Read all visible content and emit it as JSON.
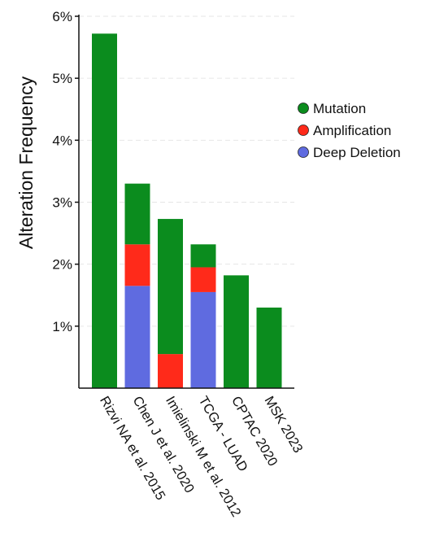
{
  "chart_data": {
    "type": "bar",
    "stacked": true,
    "title": "",
    "xlabel": "",
    "ylabel": "Alteration Frequency",
    "ylim": [
      0,
      6
    ],
    "y_ticks": [
      "1%",
      "2%",
      "3%",
      "4%",
      "5%",
      "6%"
    ],
    "y_tick_values": [
      1,
      2,
      3,
      4,
      5,
      6
    ],
    "grid": true,
    "legend_position": "right",
    "categories": [
      "Rizvi NA et al. 2015",
      "Chen J et al. 2020",
      "Imielinski M et al. 2012",
      "TCGA - LUAD",
      "CPTAC 2020",
      "MSK 2023"
    ],
    "series": [
      {
        "name": "Deep Deletion",
        "color": "#5f6be0",
        "values": [
          0,
          1.65,
          0,
          1.55,
          0,
          0
        ]
      },
      {
        "name": "Amplification",
        "color": "#ff2a1a",
        "values": [
          0,
          0.67,
          0.55,
          0.4,
          0,
          0
        ]
      },
      {
        "name": "Mutation",
        "color": "#0b8c1e",
        "values": [
          5.72,
          0.98,
          2.18,
          0.37,
          1.82,
          1.3
        ]
      }
    ],
    "legend": [
      {
        "name": "Mutation",
        "color": "#0b8c1e"
      },
      {
        "name": "Amplification",
        "color": "#ff2a1a"
      },
      {
        "name": "Deep Deletion",
        "color": "#5f6be0"
      }
    ]
  }
}
